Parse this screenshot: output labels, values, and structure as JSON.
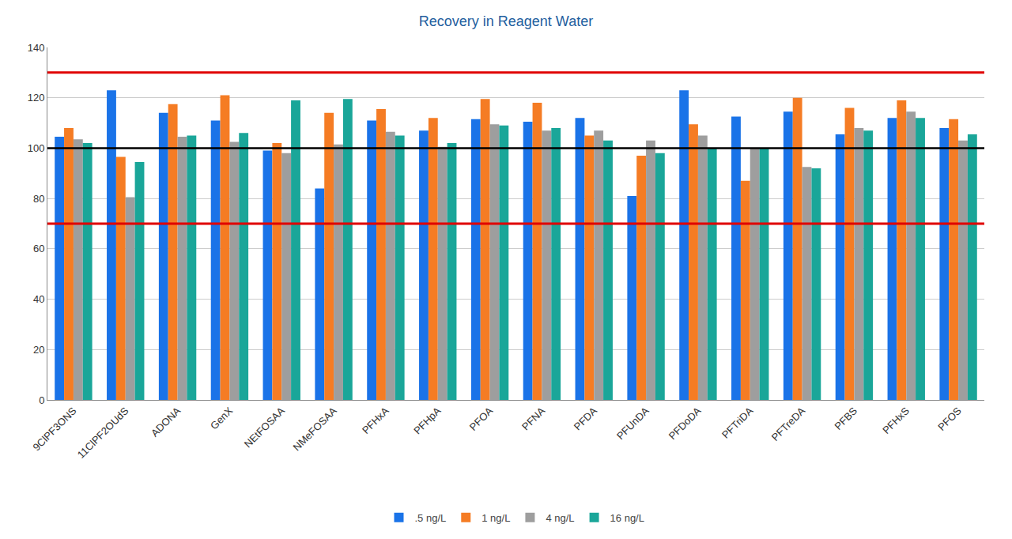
{
  "chart_data": {
    "type": "bar",
    "title": "Recovery in Reagent Water",
    "categories": [
      "9ClPF3ONS",
      "11ClPF2OUdS",
      "ADONA",
      "GenX",
      "NEtFOSAA",
      "NMeFOSAA",
      "PFHxA",
      "PFHpA",
      "PFOA",
      "PFNA",
      "PFDA",
      "PFUnDA",
      "PFDoDA",
      "PFTriDA",
      "PFTreDA",
      "PFBS",
      "PFHxS",
      "PFOS"
    ],
    "series": [
      {
        "name": ".5 ng/L",
        "color": "#1a73e8",
        "values": [
          104.5,
          123,
          114,
          111,
          99,
          84,
          111,
          107,
          111.5,
          110.5,
          112,
          81,
          123,
          112.5,
          114.5,
          105.5,
          112,
          108
        ]
      },
      {
        "name": "1 ng/L",
        "color": "#f57c24",
        "values": [
          108,
          96.5,
          117.5,
          121,
          102,
          114,
          115.5,
          112,
          119.5,
          118,
          105,
          97,
          109.5,
          87,
          120,
          116,
          119,
          111.5
        ]
      },
      {
        "name": "4 ng/L",
        "color": "#9e9e9e",
        "values": [
          103.5,
          80.5,
          104.5,
          102.5,
          98,
          101.5,
          106.5,
          100.5,
          109.5,
          107,
          107,
          103,
          105,
          100,
          92.5,
          108,
          114.5,
          103
        ]
      },
      {
        "name": "16 ng/L",
        "color": "#1aa699",
        "values": [
          102,
          94.5,
          105,
          106,
          119,
          119.5,
          105,
          102,
          109,
          108,
          103,
          98,
          100,
          100,
          92,
          107,
          112,
          105.5
        ]
      }
    ],
    "reference_lines": [
      {
        "value": 130,
        "color": "#e00000"
      },
      {
        "value": 100,
        "color": "#000000"
      },
      {
        "value": 70,
        "color": "#e00000"
      }
    ],
    "ylim": [
      0,
      140
    ],
    "yticks": [
      0,
      20,
      40,
      60,
      80,
      100,
      120,
      140
    ],
    "grid": true,
    "legend": "bottom"
  }
}
